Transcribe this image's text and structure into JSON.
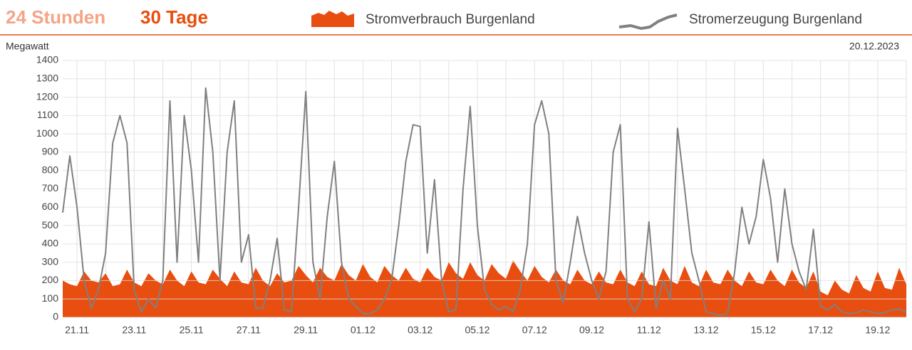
{
  "chart_data": {
    "type": "combo",
    "tabs": [
      "24 Stunden",
      "30 Tage"
    ],
    "ylabel": "Megawatt",
    "date": "20.12.2023",
    "categories": [
      null,
      null,
      "21.11",
      null,
      null,
      null,
      null,
      null,
      null,
      null,
      "23.11",
      null,
      null,
      null,
      null,
      null,
      null,
      null,
      "25.11",
      null,
      null,
      null,
      null,
      null,
      null,
      null,
      "27.11",
      null,
      null,
      null,
      null,
      null,
      null,
      null,
      "29.11",
      null,
      null,
      null,
      null,
      null,
      null,
      null,
      "01.12",
      null,
      null,
      null,
      null,
      null,
      null,
      null,
      "03.12",
      null,
      null,
      null,
      null,
      null,
      null,
      null,
      "05.12",
      null,
      null,
      null,
      null,
      null,
      null,
      null,
      "07.12",
      null,
      null,
      null,
      null,
      null,
      null,
      null,
      "09.12",
      null,
      null,
      null,
      null,
      null,
      null,
      null,
      "11.12",
      null,
      null,
      null,
      null,
      null,
      null,
      null,
      "13.12",
      null,
      null,
      null,
      null,
      null,
      null,
      null,
      "15.12",
      null,
      null,
      null,
      null,
      null,
      null,
      null,
      "17.12",
      null,
      null,
      null,
      null,
      null,
      null,
      null,
      "19.12",
      null,
      null,
      null,
      null
    ],
    "series": [
      {
        "name": "Stromverbrauch Burgenland",
        "kind": "area",
        "color": "#e84e0f",
        "values": [
          200,
          180,
          170,
          250,
          200,
          190,
          240,
          170,
          180,
          260,
          190,
          170,
          240,
          200,
          180,
          260,
          200,
          170,
          250,
          190,
          180,
          260,
          210,
          170,
          250,
          190,
          180,
          270,
          200,
          170,
          240,
          190,
          200,
          280,
          230,
          190,
          270,
          220,
          200,
          290,
          230,
          200,
          290,
          220,
          190,
          280,
          230,
          200,
          270,
          210,
          190,
          270,
          220,
          200,
          300,
          240,
          210,
          300,
          230,
          200,
          290,
          240,
          210,
          310,
          250,
          200,
          280,
          220,
          190,
          260,
          200,
          180,
          260,
          200,
          180,
          250,
          190,
          180,
          260,
          190,
          170,
          250,
          180,
          170,
          270,
          200,
          180,
          280,
          190,
          170,
          260,
          190,
          180,
          260,
          200,
          170,
          250,
          190,
          180,
          260,
          200,
          170,
          260,
          190,
          160,
          250,
          140,
          120,
          200,
          150,
          130,
          230,
          160,
          140,
          250,
          160,
          150,
          270,
          180
        ]
      },
      {
        "name": "Stromerzeugung Burgenland",
        "kind": "line",
        "color": "#808080",
        "values": [
          570,
          880,
          600,
          200,
          50,
          150,
          350,
          950,
          1100,
          950,
          150,
          30,
          100,
          50,
          200,
          1180,
          300,
          1100,
          800,
          300,
          1250,
          900,
          200,
          900,
          1180,
          300,
          450,
          50,
          50,
          200,
          430,
          40,
          30,
          600,
          1230,
          300,
          100,
          550,
          850,
          300,
          100,
          60,
          20,
          20,
          40,
          100,
          200,
          500,
          850,
          1050,
          1040,
          350,
          750,
          200,
          30,
          40,
          700,
          1150,
          500,
          150,
          70,
          40,
          60,
          30,
          150,
          400,
          1050,
          1180,
          1000,
          200,
          80,
          300,
          550,
          350,
          200,
          100,
          250,
          900,
          1050,
          100,
          30,
          100,
          520,
          50,
          200,
          100,
          1030,
          700,
          350,
          200,
          30,
          20,
          10,
          20,
          250,
          600,
          400,
          550,
          860,
          650,
          300,
          700,
          400,
          250,
          150,
          480,
          60,
          40,
          70,
          30,
          20,
          25,
          40,
          30,
          20,
          25,
          40,
          45,
          30
        ]
      }
    ],
    "ylim": [
      0,
      1400
    ],
    "yticks": [
      0,
      100,
      200,
      300,
      400,
      500,
      600,
      700,
      800,
      900,
      1000,
      1100,
      1200,
      1300,
      1400
    ],
    "grid": true
  }
}
